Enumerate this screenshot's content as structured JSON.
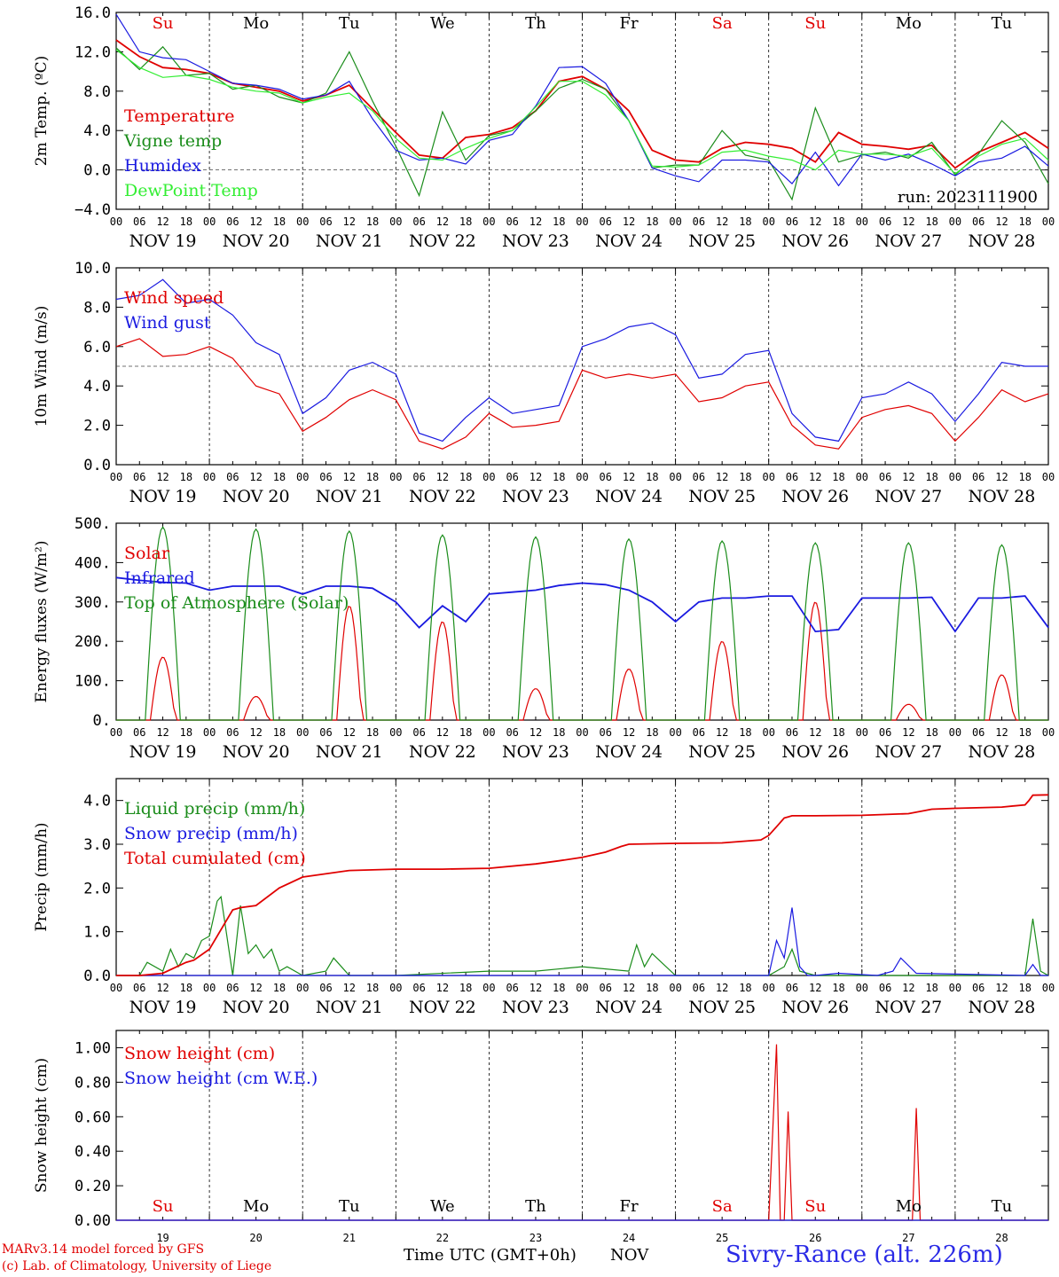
{
  "days": {
    "labels": [
      "Su",
      "Mo",
      "Tu",
      "We",
      "Th",
      "Fr",
      "Sa",
      "Su",
      "Mo",
      "Tu"
    ],
    "colors": [
      "#e00000",
      "#000000",
      "#000000",
      "#000000",
      "#000000",
      "#000000",
      "#e00000",
      "#e00000",
      "#000000",
      "#000000"
    ],
    "dates": [
      "NOV 19",
      "NOV 20",
      "NOV 21",
      "NOV 22",
      "NOV 23",
      "NOV 24",
      "NOV 25",
      "NOV 26",
      "NOV 27",
      "NOV 28"
    ],
    "day_numbers": [
      "19",
      "20",
      "21",
      "22",
      "23",
      "24",
      "25",
      "26",
      "27",
      "28"
    ],
    "hour_ticks": [
      "00",
      "06",
      "12",
      "18"
    ],
    "end_tick": "00"
  },
  "footer": {
    "model": "MARv3.14 model forced by GFS",
    "credit": "(c) Lab. of Climatology, University of Liege",
    "xlabel": "Time UTC (GMT+0h)",
    "month": "NOV",
    "station": "Sivry-Rance (alt. 226m)"
  },
  "chart_data": [
    {
      "type": "line",
      "ylabel": "2m Temp. (ºC)",
      "ylim": [
        -4,
        16
      ],
      "yticks": [
        "−4.0",
        "0.0",
        "4.0",
        "8.0",
        "12.0",
        "16.0"
      ],
      "ref_line": 0,
      "annotation": "run: 2023111900",
      "series": [
        {
          "name": "Temperature",
          "color": "#e00000",
          "x": [
            0,
            6,
            12,
            18,
            24,
            30,
            36,
            42,
            48,
            54,
            60,
            66,
            72,
            78,
            84,
            90,
            96,
            102,
            108,
            114,
            120,
            126,
            132,
            138,
            144,
            150,
            156,
            162,
            168,
            174,
            180,
            186,
            192,
            198,
            204,
            210,
            216,
            222,
            228,
            234,
            240
          ],
          "y": [
            13.2,
            11.5,
            10.4,
            10.2,
            9.8,
            8.8,
            8.4,
            8.0,
            7.0,
            7.6,
            8.6,
            6.2,
            3.8,
            1.5,
            1.2,
            3.3,
            3.6,
            4.3,
            6.0,
            9.0,
            9.5,
            8.2,
            6.0,
            2.0,
            1.0,
            0.8,
            2.2,
            2.8,
            2.6,
            2.2,
            0.8,
            3.8,
            2.6,
            2.4,
            2.1,
            2.5,
            0.2,
            1.8,
            2.8,
            3.8,
            2.2
          ]
        },
        {
          "name": "Vigne temp",
          "color": "#1a8c1a",
          "x": [
            0,
            6,
            12,
            18,
            24,
            30,
            36,
            42,
            48,
            54,
            60,
            66,
            72,
            78,
            84,
            90,
            96,
            102,
            108,
            114,
            120,
            126,
            132,
            138,
            144,
            150,
            156,
            162,
            168,
            174,
            180,
            186,
            192,
            198,
            204,
            210,
            216,
            222,
            228,
            234,
            240
          ],
          "y": [
            12.4,
            10.2,
            12.5,
            9.6,
            9.8,
            8.2,
            8.6,
            7.4,
            6.8,
            7.8,
            12.0,
            7.0,
            2.4,
            -2.6,
            5.9,
            1.0,
            3.5,
            4.0,
            6.0,
            8.3,
            9.2,
            8.2,
            5.0,
            0.2,
            0.5,
            0.5,
            4.0,
            1.5,
            1.0,
            -3.0,
            6.3,
            0.8,
            1.5,
            1.8,
            1.2,
            2.8,
            -0.5,
            1.6,
            5.0,
            2.8,
            -1.4
          ]
        },
        {
          "name": "Humidex",
          "color": "#1a1ae0",
          "x": [
            0,
            6,
            12,
            18,
            24,
            30,
            36,
            42,
            48,
            54,
            60,
            66,
            72,
            78,
            84,
            90,
            96,
            102,
            108,
            114,
            120,
            126,
            132,
            138,
            144,
            150,
            156,
            162,
            168,
            174,
            180,
            186,
            192,
            198,
            204,
            210,
            216,
            222,
            228,
            234,
            240
          ],
          "y": [
            15.8,
            12.0,
            11.4,
            11.2,
            10.0,
            8.8,
            8.6,
            8.2,
            7.2,
            7.6,
            9.0,
            5.2,
            2.0,
            1.0,
            1.2,
            0.6,
            3.0,
            3.6,
            6.5,
            10.4,
            10.5,
            8.8,
            5.0,
            0.2,
            -0.6,
            -1.2,
            1.0,
            1.0,
            0.8,
            -1.4,
            1.8,
            -1.6,
            1.6,
            1.0,
            1.6,
            0.6,
            -0.6,
            0.8,
            1.2,
            2.4,
            0.4
          ]
        },
        {
          "name": "DewPoint Temp",
          "color": "#33ee33",
          "x": [
            0,
            6,
            12,
            18,
            24,
            30,
            36,
            42,
            48,
            54,
            60,
            66,
            72,
            78,
            84,
            90,
            96,
            102,
            108,
            114,
            120,
            126,
            132,
            138,
            144,
            150,
            156,
            162,
            168,
            174,
            180,
            186,
            192,
            198,
            204,
            210,
            216,
            222,
            228,
            234,
            240
          ],
          "y": [
            12.2,
            10.4,
            9.4,
            9.6,
            9.2,
            8.4,
            8.0,
            7.8,
            6.8,
            7.4,
            7.8,
            6.0,
            3.2,
            1.2,
            1.0,
            2.2,
            3.2,
            4.0,
            6.4,
            9.0,
            9.0,
            7.6,
            5.0,
            0.4,
            0.3,
            0.5,
            1.8,
            2.0,
            1.4,
            1.0,
            0.0,
            2.0,
            1.6,
            1.6,
            1.4,
            2.2,
            -0.4,
            1.4,
            2.6,
            3.2,
            1.0
          ]
        }
      ]
    },
    {
      "type": "line",
      "ylabel": "10m Wind (m/s)",
      "ylim": [
        0,
        10
      ],
      "yticks": [
        "0.0",
        "2.0",
        "4.0",
        "6.0",
        "8.0",
        "10.0"
      ],
      "ref_line": 5,
      "series": [
        {
          "name": "Wind speed",
          "color": "#e00000",
          "x": [
            0,
            6,
            12,
            18,
            24,
            30,
            36,
            42,
            48,
            54,
            60,
            66,
            72,
            78,
            84,
            90,
            96,
            102,
            108,
            114,
            120,
            126,
            132,
            138,
            144,
            150,
            156,
            162,
            168,
            174,
            180,
            186,
            192,
            198,
            204,
            210,
            216,
            222,
            228,
            234,
            240
          ],
          "y": [
            6.0,
            6.4,
            5.5,
            5.6,
            6.0,
            5.4,
            4.0,
            3.6,
            1.7,
            2.4,
            3.3,
            3.8,
            3.3,
            1.2,
            0.8,
            1.4,
            2.6,
            1.9,
            2.0,
            2.2,
            4.8,
            4.4,
            4.6,
            4.4,
            4.6,
            3.2,
            3.4,
            4.0,
            4.2,
            2.0,
            1.0,
            0.8,
            2.4,
            2.8,
            3.0,
            2.6,
            1.2,
            2.4,
            3.8,
            3.2,
            3.6
          ]
        },
        {
          "name": "Wind gust",
          "color": "#1a1ae0",
          "x": [
            0,
            6,
            12,
            18,
            24,
            30,
            36,
            42,
            48,
            54,
            60,
            66,
            72,
            78,
            84,
            90,
            96,
            102,
            108,
            114,
            120,
            126,
            132,
            138,
            144,
            150,
            156,
            162,
            168,
            174,
            180,
            186,
            192,
            198,
            204,
            210,
            216,
            222,
            228,
            234,
            240
          ],
          "y": [
            8.4,
            8.6,
            9.4,
            8.2,
            8.4,
            7.6,
            6.2,
            5.6,
            2.6,
            3.4,
            4.8,
            5.2,
            4.6,
            1.6,
            1.2,
            2.4,
            3.4,
            2.6,
            2.8,
            3.0,
            6.0,
            6.4,
            7.0,
            7.2,
            6.6,
            4.4,
            4.6,
            5.6,
            5.8,
            2.6,
            1.4,
            1.2,
            3.4,
            3.6,
            4.2,
            3.6,
            2.2,
            3.6,
            5.2,
            5.0,
            5.0
          ]
        }
      ]
    },
    {
      "type": "line",
      "ylabel": "Energy fluxes (W/m²)",
      "ylim": [
        0,
        500
      ],
      "yticks": [
        "0.",
        "100.",
        "200.",
        "300.",
        "400.",
        "500."
      ],
      "series": [
        {
          "name": "Solar",
          "color": "#e00000",
          "peaks": [
            160,
            60,
            290,
            250,
            80,
            130,
            200,
            300,
            40,
            115
          ]
        },
        {
          "name": "Infrared",
          "color": "#1a1ae0",
          "x": [
            0,
            6,
            12,
            18,
            24,
            30,
            36,
            42,
            48,
            54,
            60,
            66,
            72,
            78,
            84,
            90,
            96,
            102,
            108,
            114,
            120,
            126,
            132,
            138,
            144,
            150,
            156,
            162,
            168,
            174,
            180,
            186,
            192,
            198,
            204,
            210,
            216,
            222,
            228,
            234,
            240
          ],
          "y": [
            362,
            355,
            350,
            348,
            330,
            340,
            340,
            340,
            320,
            340,
            340,
            335,
            300,
            235,
            290,
            250,
            320,
            325,
            330,
            342,
            348,
            344,
            330,
            300,
            250,
            300,
            310,
            310,
            315,
            315,
            225,
            230,
            310,
            310,
            310,
            312,
            225,
            310,
            310,
            315,
            235
          ]
        },
        {
          "name": "Top of Atmosphere (Solar)",
          "color": "#1a8c1a",
          "peaks": [
            490,
            485,
            480,
            470,
            465,
            460,
            455,
            450,
            450,
            445
          ]
        }
      ]
    },
    {
      "type": "line",
      "ylabel": "Precip (mm/h)",
      "ylim": [
        0,
        4.5
      ],
      "yticks": [
        "0.0",
        "1.0",
        "2.0",
        "3.0",
        "4.0"
      ],
      "series": [
        {
          "name": "Liquid precip (mm/h)",
          "color": "#1a8c1a",
          "x": [
            0,
            6,
            8,
            12,
            14,
            16,
            18,
            20,
            22,
            24,
            26,
            27,
            28,
            30,
            32,
            34,
            36,
            38,
            40,
            42,
            44,
            48,
            54,
            56,
            60,
            66,
            72,
            96,
            108,
            120,
            132,
            134,
            136,
            138,
            144,
            168,
            172,
            174,
            176,
            180,
            216,
            234,
            236,
            238,
            240
          ],
          "y": [
            0,
            0,
            0.3,
            0.1,
            0.6,
            0.2,
            0.5,
            0.4,
            0.8,
            0.9,
            1.7,
            1.8,
            1.2,
            0.0,
            1.6,
            0.5,
            0.7,
            0.4,
            0.6,
            0.1,
            0.2,
            0.0,
            0.1,
            0.4,
            0.0,
            0.0,
            0.0,
            0.1,
            0.1,
            0.2,
            0.1,
            0.7,
            0.2,
            0.5,
            0.0,
            0.0,
            0.2,
            0.6,
            0.1,
            0.0,
            0.0,
            0.0,
            1.3,
            0.1,
            0.0
          ]
        },
        {
          "name": "Snow precip (mm/h)",
          "color": "#1a1ae0",
          "x": [
            0,
            168,
            170,
            172,
            174,
            176,
            178,
            180,
            186,
            196,
            200,
            202,
            206,
            234,
            236,
            238,
            240
          ],
          "y": [
            0,
            0,
            0.8,
            0.4,
            1.55,
            0.2,
            0,
            0,
            0.05,
            0,
            0.1,
            0.4,
            0.05,
            0,
            0.25,
            0,
            0
          ]
        },
        {
          "name": "Total cumulated (cm)",
          "color": "#e00000",
          "x": [
            0,
            6,
            12,
            18,
            20,
            24,
            26,
            28,
            30,
            32,
            36,
            42,
            48,
            60,
            72,
            84,
            96,
            108,
            114,
            120,
            126,
            130,
            132,
            144,
            156,
            166,
            168,
            170,
            172,
            174,
            180,
            192,
            204,
            210,
            216,
            228,
            234,
            235,
            236,
            240
          ],
          "y": [
            0,
            0,
            0.05,
            0.3,
            0.35,
            0.6,
            0.9,
            1.2,
            1.5,
            1.55,
            1.6,
            2.0,
            2.25,
            2.4,
            2.43,
            2.43,
            2.45,
            2.55,
            2.62,
            2.7,
            2.82,
            2.95,
            3.0,
            3.02,
            3.03,
            3.1,
            3.2,
            3.4,
            3.6,
            3.65,
            3.65,
            3.66,
            3.7,
            3.8,
            3.82,
            3.85,
            3.9,
            4.0,
            4.12,
            4.13
          ]
        }
      ]
    },
    {
      "type": "line",
      "ylabel": "Snow height (cm)",
      "ylim": [
        0,
        1.1
      ],
      "yticks": [
        "0.00",
        "0.20",
        "0.40",
        "0.60",
        "0.80",
        "1.00"
      ],
      "series": [
        {
          "name": "Snow height (cm)",
          "color": "#e00000",
          "x": [
            0,
            168,
            169,
            170,
            171,
            172,
            173,
            174,
            205,
            206,
            207,
            240
          ],
          "y": [
            0,
            0,
            0.5,
            1.02,
            0,
            0,
            0.63,
            0,
            0,
            0.65,
            0,
            0
          ]
        },
        {
          "name": "Snow height (cm W.E.)",
          "color": "#1a1ae0",
          "x": [
            0,
            240
          ],
          "y": [
            0,
            0
          ]
        }
      ]
    }
  ]
}
